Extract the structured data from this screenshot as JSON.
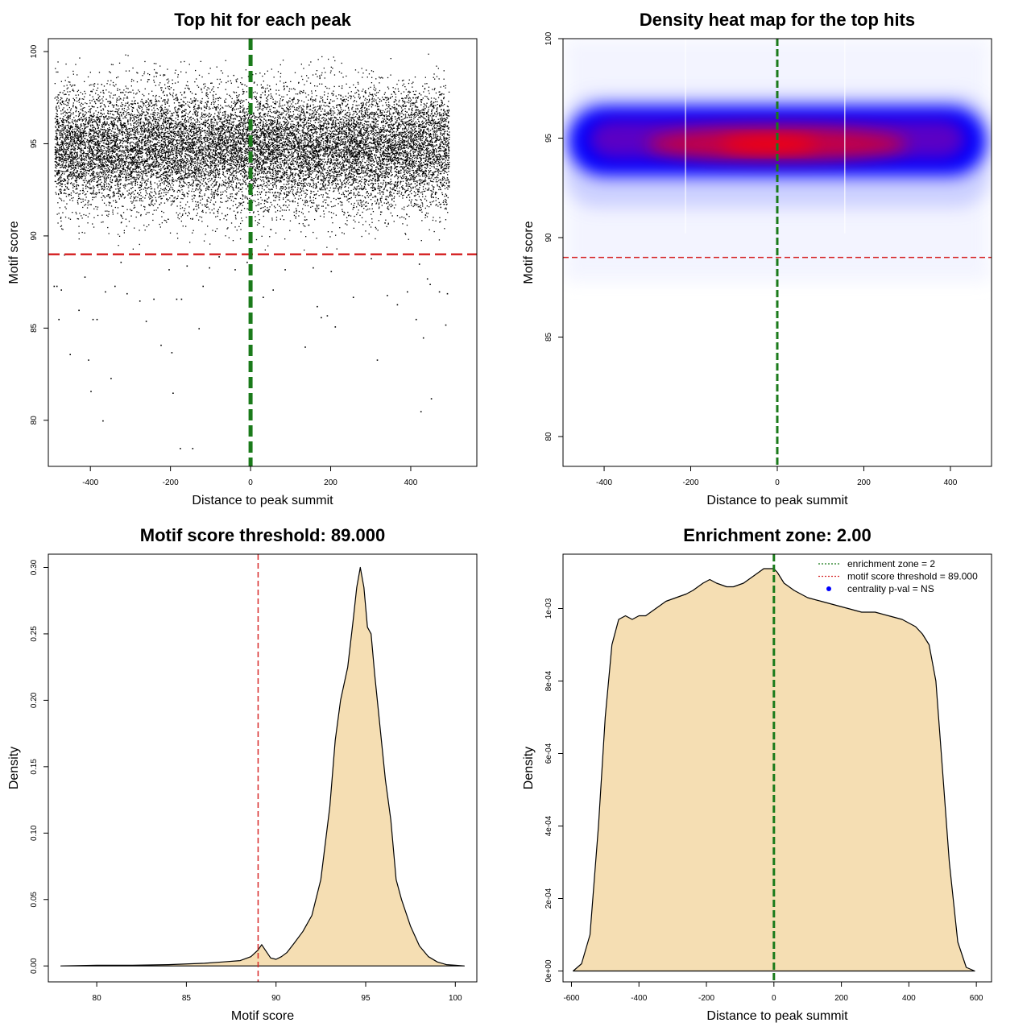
{
  "chart_data": [
    {
      "type": "scatter",
      "title": "Top hit for each peak",
      "xlabel": "Distance to peak summit",
      "ylabel": "Motif score",
      "xlim": [
        -505,
        565
      ],
      "ylim": [
        77.5,
        100.7
      ],
      "xticks": [
        -400,
        -200,
        0,
        200,
        400
      ],
      "xtick_labels": [
        "-400",
        "-200",
        "0",
        "200",
        "400"
      ],
      "yticks": [
        80,
        85,
        90,
        95,
        100
      ],
      "ytick_labels": [
        "80",
        "85",
        "90",
        "95",
        "100"
      ],
      "point_color": "#000000",
      "x_extent": [
        -490,
        495
      ],
      "score_center": 94.8,
      "score_spread": 1.6,
      "approx_points": 16000,
      "points_below_threshold": [
        [
          -492,
          87.3
        ],
        [
          -485,
          87.3
        ],
        [
          -480,
          85.5
        ],
        [
          -474,
          87.1
        ],
        [
          -466,
          89.0
        ],
        [
          -452,
          83.6
        ],
        [
          -430,
          86.0
        ],
        [
          -415,
          87.8
        ],
        [
          -406,
          83.3
        ],
        [
          -400,
          81.6
        ],
        [
          -395,
          85.5
        ],
        [
          -385,
          85.5
        ],
        [
          -370,
          80.0
        ],
        [
          -364,
          87.0
        ],
        [
          -350,
          82.3
        ],
        [
          -340,
          87.3
        ],
        [
          -325,
          88.6
        ],
        [
          -310,
          86.9
        ],
        [
          -278,
          86.5
        ],
        [
          -262,
          85.4
        ],
        [
          -243,
          86.6
        ],
        [
          -225,
          84.1
        ],
        [
          -205,
          88.2
        ],
        [
          -198,
          83.7
        ],
        [
          -195,
          81.5
        ],
        [
          -186,
          86.6
        ],
        [
          -177,
          78.5
        ],
        [
          -174,
          86.6
        ],
        [
          -160,
          88.4
        ],
        [
          -146,
          78.5
        ],
        [
          -130,
          85.0
        ],
        [
          -120,
          87.3
        ],
        [
          -104,
          88.3
        ],
        [
          -80,
          88.9
        ],
        [
          -40,
          88.2
        ],
        [
          -10,
          88.6
        ],
        [
          30,
          86.7
        ],
        [
          55,
          87.1
        ],
        [
          85,
          88.2
        ],
        [
          135,
          84.0
        ],
        [
          155,
          88.3
        ],
        [
          165,
          86.2
        ],
        [
          175,
          85.6
        ],
        [
          190,
          85.7
        ],
        [
          200,
          88.1
        ],
        [
          210,
          85.1
        ],
        [
          255,
          86.7
        ],
        [
          300,
          88.8
        ],
        [
          315,
          83.3
        ],
        [
          340,
          86.8
        ],
        [
          365,
          86.3
        ],
        [
          390,
          87.0
        ],
        [
          412,
          85.5
        ],
        [
          420,
          88.5
        ],
        [
          424,
          80.5
        ],
        [
          430,
          84.5
        ],
        [
          440,
          87.7
        ],
        [
          447,
          87.4
        ],
        [
          450,
          81.2
        ],
        [
          470,
          87.0
        ],
        [
          486,
          85.2
        ],
        [
          490,
          86.9
        ]
      ],
      "threshold_line": {
        "y": 89.0,
        "color": "#d62728",
        "style": "dashed"
      },
      "center_line": {
        "x": 0,
        "color": "#1a7a1a",
        "style": "dashed"
      }
    },
    {
      "type": "heatmap",
      "title": "Density heat map for the top hits",
      "xlabel": "Distance to peak summit",
      "ylabel": "Motif score",
      "xlim": [
        -495,
        495
      ],
      "ylim": [
        78.5,
        100
      ],
      "xticks": [
        -400,
        -200,
        0,
        200,
        400
      ],
      "xtick_labels": [
        "-400",
        "-200",
        "0",
        "200",
        "400"
      ],
      "yticks": [
        80,
        85,
        90,
        95,
        100
      ],
      "ytick_labels": [
        "80",
        "85",
        "90",
        "95",
        "100"
      ],
      "color_scale": [
        "#ffffff",
        "#0000ff",
        "#ff0000"
      ],
      "density_center_score": 94.9,
      "density_x_extent": [
        -490,
        490
      ],
      "hot_region": {
        "x": [
          -300,
          300
        ],
        "score": [
          94.0,
          95.6
        ]
      },
      "vertical_gaps_x": [
        -212,
        156
      ],
      "threshold_line": {
        "y": 89.0,
        "color": "#d62728",
        "style": "dashed"
      },
      "center_line": {
        "x": 0,
        "color": "#1a7a1a",
        "style": "dashed"
      }
    },
    {
      "type": "area",
      "title": "Motif score threshold: 89.000",
      "xlabel": "Motif score",
      "ylabel": "Density",
      "xlim": [
        77.3,
        101.2
      ],
      "ylim": [
        -0.012,
        0.31
      ],
      "xticks": [
        80,
        85,
        90,
        95,
        100
      ],
      "xtick_labels": [
        "80",
        "85",
        "90",
        "95",
        "100"
      ],
      "yticks": [
        0.0,
        0.05,
        0.1,
        0.15,
        0.2,
        0.25,
        0.3
      ],
      "ytick_labels": [
        "0.00",
        "0.05",
        "0.10",
        "0.15",
        "0.20",
        "0.25",
        "0.30"
      ],
      "fill_color": "#f5deb3",
      "x": [
        78.0,
        80,
        82,
        84,
        86,
        87,
        88,
        88.6,
        89.0,
        89.2,
        89.4,
        89.7,
        90.0,
        90.3,
        90.6,
        91.0,
        91.5,
        92.0,
        92.5,
        93.0,
        93.3,
        93.6,
        94.0,
        94.3,
        94.5,
        94.7,
        94.9,
        95.1,
        95.3,
        95.5,
        95.8,
        96.1,
        96.4,
        96.7,
        97.0,
        97.5,
        98.0,
        98.5,
        99.0,
        99.5,
        100.0,
        100.5
      ],
      "y": [
        0.0,
        0.0005,
        0.0005,
        0.001,
        0.002,
        0.003,
        0.004,
        0.007,
        0.012,
        0.016,
        0.012,
        0.006,
        0.005,
        0.007,
        0.01,
        0.017,
        0.026,
        0.038,
        0.065,
        0.12,
        0.17,
        0.2,
        0.225,
        0.26,
        0.285,
        0.3,
        0.285,
        0.255,
        0.25,
        0.22,
        0.18,
        0.14,
        0.11,
        0.065,
        0.05,
        0.03,
        0.015,
        0.007,
        0.003,
        0.001,
        0.0005,
        0.0
      ],
      "threshold_line": {
        "x": 89.0,
        "color": "#d62728",
        "style": "dashed"
      }
    },
    {
      "type": "area",
      "title": "Enrichment zone: 2.00",
      "xlabel": "Distance to peak summit",
      "ylabel": "Density",
      "xlim": [
        -625,
        645
      ],
      "ylim": [
        -3e-05,
        0.00115
      ],
      "xticks": [
        -600,
        -400,
        -200,
        0,
        200,
        400,
        600
      ],
      "xtick_labels": [
        "-600",
        "-400",
        "-200",
        "0",
        "200",
        "400",
        "600"
      ],
      "yticks": [
        0,
        0.0002,
        0.0004,
        0.0006,
        0.0008,
        0.001
      ],
      "ytick_labels": [
        "0e+00",
        "2e-04",
        "4e-04",
        "6e-04",
        "8e-04",
        "1e-03"
      ],
      "fill_color": "#f5deb3",
      "x": [
        -595,
        -570,
        -545,
        -520,
        -500,
        -480,
        -460,
        -440,
        -420,
        -400,
        -380,
        -350,
        -320,
        -290,
        -260,
        -240,
        -210,
        -190,
        -170,
        -140,
        -120,
        -90,
        -60,
        -30,
        -10,
        0,
        10,
        30,
        60,
        100,
        140,
        180,
        220,
        260,
        300,
        340,
        380,
        420,
        440,
        460,
        480,
        500,
        520,
        545,
        570,
        595
      ],
      "y": [
        0.0,
        2e-05,
        0.0001,
        0.0004,
        0.0007,
        0.0009,
        0.00097,
        0.00098,
        0.00097,
        0.00098,
        0.00098,
        0.001,
        0.00102,
        0.00103,
        0.00104,
        0.00105,
        0.00107,
        0.00108,
        0.00107,
        0.00106,
        0.00106,
        0.00107,
        0.00109,
        0.00111,
        0.00111,
        0.00111,
        0.0011,
        0.00107,
        0.00105,
        0.00103,
        0.00102,
        0.00101,
        0.001,
        0.00099,
        0.00099,
        0.00098,
        0.00097,
        0.00095,
        0.00093,
        0.0009,
        0.0008,
        0.00055,
        0.0003,
        8e-05,
        1e-05,
        0.0
      ],
      "center_line": {
        "x": 0,
        "color": "#1a7a1a",
        "style": "dashed"
      },
      "legend": {
        "position": "top-right",
        "entries": [
          {
            "label": "enrichment zone = 2",
            "color": "#1a7a1a",
            "marker": "dotted-line"
          },
          {
            "label": "motif score threshold = 89.000",
            "color": "#d62728",
            "marker": "dotted-line"
          },
          {
            "label": "centrality p-val = NS",
            "color": "#0000ff",
            "marker": "dot"
          }
        ]
      }
    }
  ]
}
